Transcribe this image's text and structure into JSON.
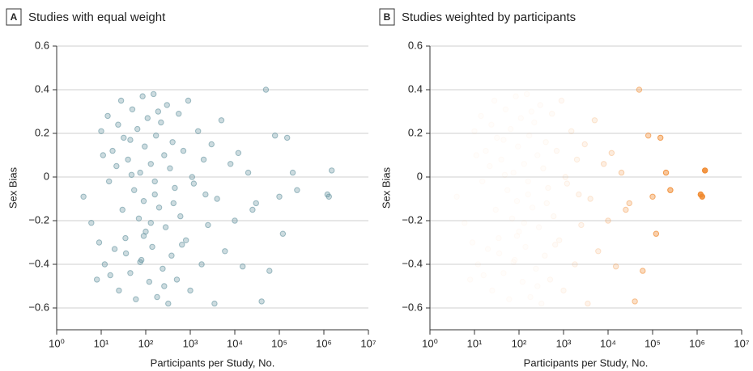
{
  "chart_data": [
    {
      "type": "scatter",
      "panel_label": "A",
      "title": "Studies with equal weight",
      "x_label": "Participants per Study, No.",
      "y_label": "Sex Bias",
      "log_x": true,
      "grid": true,
      "color": "#5b8d99",
      "weighted": false,
      "xlim": [
        1,
        10000000
      ],
      "xticks": [
        {
          "value": 1,
          "label": "10⁰"
        },
        {
          "value": 10,
          "label": "10¹"
        },
        {
          "value": 100,
          "label": "10²"
        },
        {
          "value": 1000,
          "label": "10³"
        },
        {
          "value": 10000,
          "label": "10⁴"
        },
        {
          "value": 100000,
          "label": "10⁵"
        },
        {
          "value": 1000000,
          "label": "10⁶"
        },
        {
          "value": 10000000,
          "label": "10⁷"
        }
      ],
      "ylim": [
        -0.7,
        0.6
      ],
      "yticks": [
        0.6,
        0.4,
        0.2,
        0,
        {
          "value": -0.2,
          "label": "−0.2"
        },
        {
          "value": -0.4,
          "label": "−0.4"
        },
        {
          "value": -0.6,
          "label": "−0.6"
        }
      ],
      "x": [
        4,
        6,
        8,
        10,
        12,
        14,
        15,
        18,
        20,
        22,
        25,
        28,
        30,
        32,
        35,
        40,
        45,
        50,
        55,
        60,
        65,
        70,
        75,
        80,
        85,
        90,
        95,
        100,
        110,
        120,
        130,
        140,
        150,
        160,
        170,
        180,
        200,
        220,
        240,
        260,
        280,
        300,
        320,
        350,
        380,
        400,
        450,
        500,
        550,
        600,
        700,
        800,
        900,
        1000,
        1200,
        1500,
        1800,
        2000,
        2500,
        3000,
        3500,
        4000,
        5000,
        6000,
        8000,
        10000,
        12000,
        15000,
        20000,
        25000,
        30000,
        40000,
        50000,
        60000,
        80000,
        100000,
        120000,
        150000,
        200000,
        250000,
        1200000,
        1300000,
        1500000,
        9,
        11,
        16,
        24,
        36,
        48,
        90,
        130,
        190,
        260,
        420,
        650,
        1100,
        2200,
        45,
        75,
        160
      ],
      "y": [
        -0.09,
        -0.21,
        -0.47,
        0.21,
        -0.4,
        0.28,
        -0.02,
        0.12,
        -0.33,
        0.05,
        -0.52,
        0.35,
        -0.15,
        0.18,
        -0.28,
        0.08,
        -0.44,
        0.31,
        -0.06,
        -0.56,
        0.22,
        -0.19,
        0.02,
        -0.38,
        0.37,
        -0.11,
        0.14,
        -0.25,
        0.27,
        -0.48,
        0.06,
        -0.32,
        0.38,
        -0.08,
        0.19,
        -0.55,
        -0.14,
        0.25,
        -0.42,
        0.1,
        -0.23,
        0.33,
        -0.58,
        0.04,
        -0.36,
        0.16,
        -0.05,
        -0.47,
        0.29,
        -0.18,
        0.12,
        -0.29,
        0.35,
        -0.52,
        -0.03,
        0.21,
        -0.4,
        0.08,
        -0.22,
        0.15,
        -0.58,
        -0.1,
        0.26,
        -0.34,
        0.06,
        -0.2,
        0.11,
        -0.41,
        0.02,
        -0.15,
        -0.12,
        -0.57,
        0.4,
        -0.43,
        0.19,
        -0.09,
        -0.26,
        0.18,
        0.02,
        -0.06,
        -0.08,
        -0.09,
        0.03,
        -0.3,
        0.1,
        -0.45,
        0.24,
        -0.35,
        0.01,
        -0.27,
        -0.21,
        0.3,
        -0.5,
        -0.12,
        -0.31,
        0.0,
        -0.08,
        0.17,
        -0.39,
        -0.02
      ]
    },
    {
      "type": "scatter",
      "panel_label": "B",
      "title": "Studies weighted by participants",
      "x_label": "Participants per Study, No.",
      "y_label": "Sex Bias",
      "log_x": true,
      "grid": true,
      "color": "#f0892e",
      "weighted": true,
      "xlim": [
        1,
        10000000
      ],
      "xticks": [
        {
          "value": 1,
          "label": "10⁰"
        },
        {
          "value": 10,
          "label": "10¹"
        },
        {
          "value": 100,
          "label": "10²"
        },
        {
          "value": 1000,
          "label": "10³"
        },
        {
          "value": 10000,
          "label": "10⁴"
        },
        {
          "value": 100000,
          "label": "10⁵"
        },
        {
          "value": 1000000,
          "label": "10⁶"
        },
        {
          "value": 10000000,
          "label": "10⁷"
        }
      ],
      "ylim": [
        -0.7,
        0.6
      ],
      "yticks": [
        0.6,
        0.4,
        0.2,
        0,
        {
          "value": -0.2,
          "label": "−0.2"
        },
        {
          "value": -0.4,
          "label": "−0.4"
        },
        {
          "value": -0.6,
          "label": "−0.6"
        }
      ],
      "x": [
        4,
        6,
        8,
        10,
        12,
        14,
        15,
        18,
        20,
        22,
        25,
        28,
        30,
        32,
        35,
        40,
        45,
        50,
        55,
        60,
        65,
        70,
        75,
        80,
        85,
        90,
        95,
        100,
        110,
        120,
        130,
        140,
        150,
        160,
        170,
        180,
        200,
        220,
        240,
        260,
        280,
        300,
        320,
        350,
        380,
        400,
        450,
        500,
        550,
        600,
        700,
        800,
        900,
        1000,
        1200,
        1500,
        1800,
        2000,
        2500,
        3000,
        3500,
        4000,
        5000,
        6000,
        8000,
        10000,
        12000,
        15000,
        20000,
        25000,
        30000,
        40000,
        50000,
        60000,
        80000,
        100000,
        120000,
        150000,
        200000,
        250000,
        1200000,
        1300000,
        1500000,
        9,
        11,
        16,
        24,
        36,
        48,
        90,
        130,
        190,
        260,
        420,
        650,
        1100,
        2200,
        45,
        75,
        160
      ],
      "y": [
        -0.09,
        -0.21,
        -0.47,
        0.21,
        -0.4,
        0.28,
        -0.02,
        0.12,
        -0.33,
        0.05,
        -0.52,
        0.35,
        -0.15,
        0.18,
        -0.28,
        0.08,
        -0.44,
        0.31,
        -0.06,
        -0.56,
        0.22,
        -0.19,
        0.02,
        -0.38,
        0.37,
        -0.11,
        0.14,
        -0.25,
        0.27,
        -0.48,
        0.06,
        -0.32,
        0.38,
        -0.08,
        0.19,
        -0.55,
        -0.14,
        0.25,
        -0.42,
        0.1,
        -0.23,
        0.33,
        -0.58,
        0.04,
        -0.36,
        0.16,
        -0.05,
        -0.47,
        0.29,
        -0.18,
        0.12,
        -0.29,
        0.35,
        -0.52,
        -0.03,
        0.21,
        -0.4,
        0.08,
        -0.22,
        0.15,
        -0.58,
        -0.1,
        0.26,
        -0.34,
        0.06,
        -0.2,
        0.11,
        -0.41,
        0.02,
        -0.15,
        -0.12,
        -0.57,
        0.4,
        -0.43,
        0.19,
        -0.09,
        -0.26,
        0.18,
        0.02,
        -0.06,
        -0.08,
        -0.09,
        0.03,
        -0.3,
        0.1,
        -0.45,
        0.24,
        -0.35,
        0.01,
        -0.27,
        -0.21,
        0.3,
        -0.5,
        -0.12,
        -0.31,
        0.0,
        -0.08,
        0.17,
        -0.39,
        -0.02
      ]
    }
  ]
}
